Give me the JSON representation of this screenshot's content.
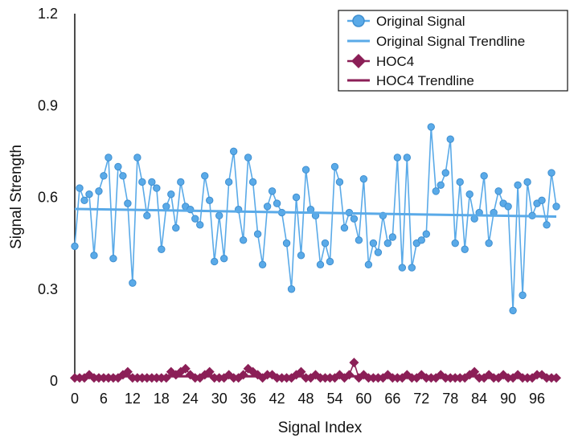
{
  "chart_data": {
    "type": "line",
    "xlabel": "Signal Index",
    "ylabel": "Signal Strength",
    "xlim": [
      0,
      102
    ],
    "ylim": [
      0,
      1.2
    ],
    "x_ticks": [
      0,
      6,
      12,
      18,
      24,
      30,
      36,
      42,
      48,
      54,
      60,
      66,
      72,
      78,
      84,
      90,
      96
    ],
    "y_ticks": [
      0,
      0.3,
      0.6,
      0.9,
      1.2
    ],
    "y_tick_labels": [
      "0",
      "0.3",
      "0.6",
      "0.9",
      "1.2"
    ],
    "grid": false,
    "legend_position": "top-right",
    "series": [
      {
        "name": "Original Signal",
        "color": "#5aaae8",
        "marker": "circle",
        "values": [
          0.44,
          0.63,
          0.59,
          0.61,
          0.41,
          0.62,
          0.67,
          0.73,
          0.4,
          0.7,
          0.67,
          0.58,
          0.32,
          0.73,
          0.65,
          0.54,
          0.65,
          0.63,
          0.43,
          0.57,
          0.61,
          0.5,
          0.65,
          0.57,
          0.56,
          0.53,
          0.51,
          0.67,
          0.59,
          0.39,
          0.54,
          0.4,
          0.65,
          0.75,
          0.56,
          0.46,
          0.73,
          0.65,
          0.48,
          0.38,
          0.57,
          0.62,
          0.58,
          0.55,
          0.45,
          0.3,
          0.6,
          0.41,
          0.69,
          0.56,
          0.54,
          0.38,
          0.45,
          0.39,
          0.7,
          0.65,
          0.5,
          0.55,
          0.53,
          0.46,
          0.66,
          0.38,
          0.45,
          0.42,
          0.54,
          0.45,
          0.47,
          0.73,
          0.37,
          0.73,
          0.37,
          0.45,
          0.46,
          0.48,
          0.83,
          0.62,
          0.64,
          0.68,
          0.79,
          0.45,
          0.65,
          0.43,
          0.61,
          0.53,
          0.55,
          0.67,
          0.45,
          0.55,
          0.62,
          0.58,
          0.57,
          0.23,
          0.64,
          0.28,
          0.65,
          0.54,
          0.58,
          0.59,
          0.51,
          0.68,
          0.57
        ]
      },
      {
        "name": "Original Signal Trendline",
        "color": "#5aaae8",
        "marker": "none",
        "x": [
          0,
          100
        ],
        "values": [
          0.562,
          0.537
        ]
      },
      {
        "name": "HOC4",
        "color": "#8b1f57",
        "marker": "diamond",
        "values": [
          0.01,
          0.01,
          0.01,
          0.02,
          0.01,
          0.01,
          0.01,
          0.01,
          0.01,
          0.01,
          0.02,
          0.03,
          0.01,
          0.01,
          0.01,
          0.01,
          0.01,
          0.01,
          0.01,
          0.01,
          0.03,
          0.02,
          0.03,
          0.04,
          0.02,
          0.01,
          0.01,
          0.02,
          0.03,
          0.01,
          0.01,
          0.01,
          0.02,
          0.01,
          0.01,
          0.02,
          0.04,
          0.03,
          0.02,
          0.01,
          0.02,
          0.02,
          0.01,
          0.01,
          0.01,
          0.01,
          0.02,
          0.03,
          0.01,
          0.01,
          0.02,
          0.01,
          0.01,
          0.01,
          0.01,
          0.02,
          0.01,
          0.02,
          0.06,
          0.01,
          0.02,
          0.01,
          0.01,
          0.01,
          0.01,
          0.02,
          0.01,
          0.01,
          0.01,
          0.02,
          0.01,
          0.01,
          0.02,
          0.01,
          0.01,
          0.01,
          0.02,
          0.01,
          0.01,
          0.01,
          0.01,
          0.01,
          0.02,
          0.03,
          0.01,
          0.01,
          0.02,
          0.01,
          0.01,
          0.02,
          0.01,
          0.01,
          0.02,
          0.01,
          0.01,
          0.01,
          0.02,
          0.02,
          0.01,
          0.01,
          0.01
        ]
      },
      {
        "name": "HOC4 Trendline",
        "color": "#8b1f57",
        "marker": "none",
        "x": [
          0,
          100
        ],
        "values": [
          0.015,
          0.015
        ]
      }
    ]
  }
}
